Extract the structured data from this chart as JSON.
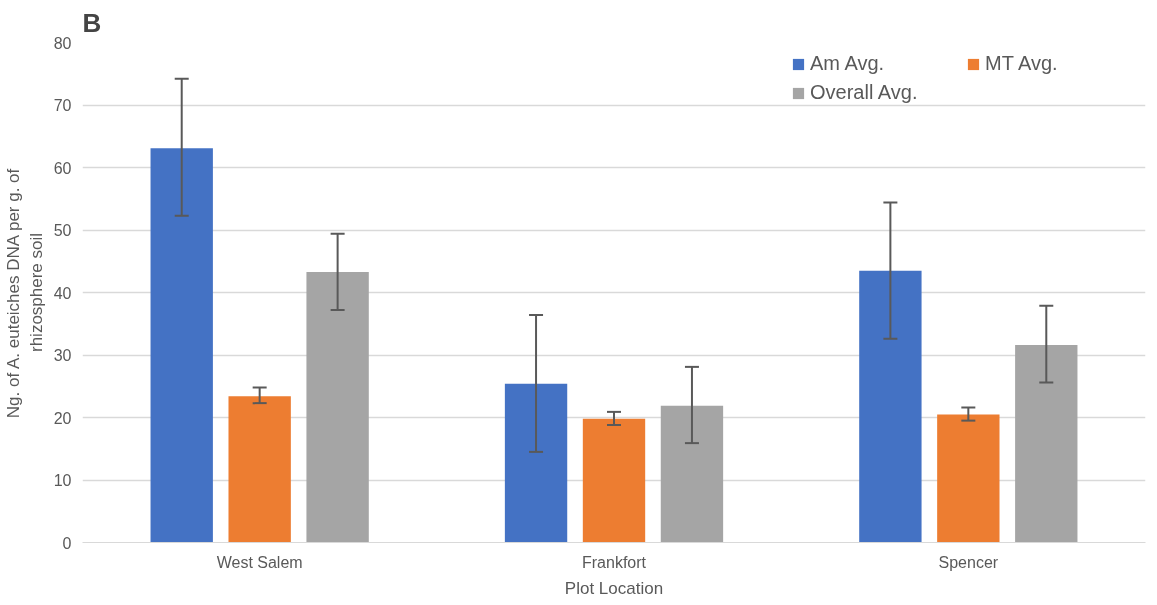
{
  "chart_data": {
    "type": "bar",
    "title": "B",
    "xlabel": "Plot Location",
    "ylabel": "Ng. of A. euteiches DNA per g. of rhizosphere soil",
    "categories": [
      "West Salem",
      "Frankfort",
      "Spencer"
    ],
    "series": [
      {
        "name": "Am Avg.",
        "color": "#4472c4",
        "values": [
          63.1,
          25.4,
          43.5
        ],
        "errors": [
          [
            52.3,
            74.2
          ],
          [
            14.5,
            36.4
          ],
          [
            32.6,
            54.4
          ]
        ]
      },
      {
        "name": "MT Avg.",
        "color": "#ed7d31",
        "values": [
          23.4,
          19.8,
          20.5
        ],
        "errors": [
          [
            22.3,
            24.8
          ],
          [
            18.8,
            20.9
          ],
          [
            19.5,
            21.6
          ]
        ]
      },
      {
        "name": "Overall Avg.",
        "color": "#a5a5a5",
        "values": [
          43.3,
          21.9,
          31.6
        ],
        "errors": [
          [
            37.2,
            49.4
          ],
          [
            15.9,
            28.1
          ],
          [
            25.6,
            37.9
          ]
        ]
      }
    ],
    "ylim": [
      0,
      80
    ],
    "yticks": [
      0,
      10,
      20,
      30,
      40,
      50,
      60,
      70,
      80
    ],
    "grid": "y",
    "legend": "top right"
  }
}
